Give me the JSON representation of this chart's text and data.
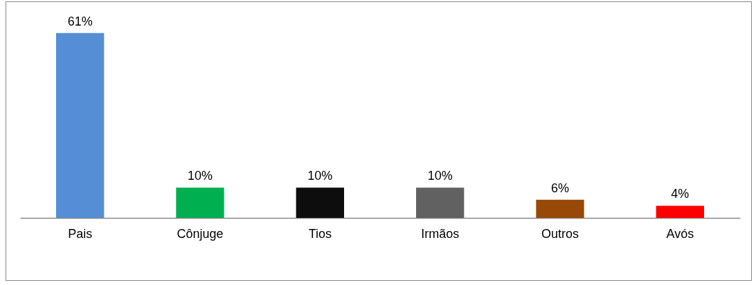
{
  "chart_data": {
    "type": "bar",
    "categories": [
      "Pais",
      "Cônjuge",
      "Tios",
      "Irmãos",
      "Outros",
      "Avós"
    ],
    "values": [
      61,
      10,
      10,
      10,
      6,
      4
    ],
    "colors": [
      "#558ed5",
      "#00b050",
      "#0d0d0d",
      "#616161",
      "#984807",
      "#ff0000"
    ],
    "value_labels": [
      "61%",
      "10%",
      "10%",
      "10%",
      "6%",
      "4%"
    ],
    "grid": false
  }
}
